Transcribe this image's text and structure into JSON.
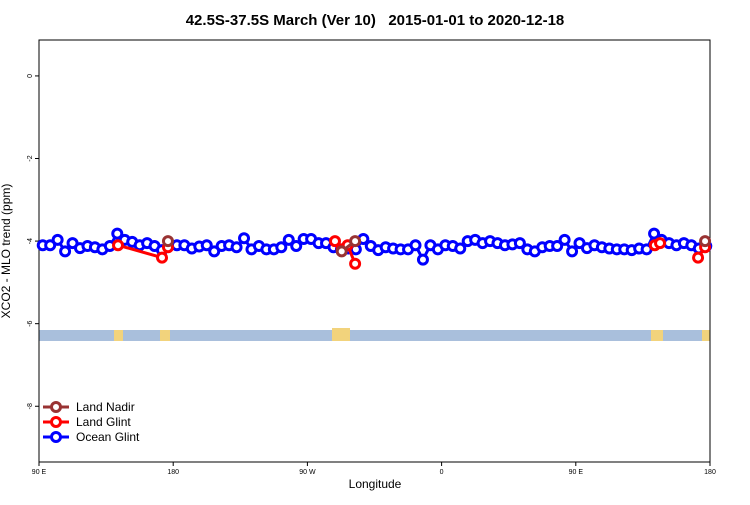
{
  "chart_data": {
    "type": "line",
    "title": "42.5S-37.5S March (Ver 10)   2015-01-01 to 2020-12-18",
    "x_label": "Longitude",
    "y_label": "XCO2 - MLO trend (ppm)",
    "xlim": [
      90,
      540
    ],
    "xticks": [
      {
        "value": 90,
        "label": "90 E"
      },
      {
        "value": 180,
        "label": "180"
      },
      {
        "value": 270,
        "label": "90 W"
      },
      {
        "value": 360,
        "label": "0"
      },
      {
        "value": 450,
        "label": "90 E"
      },
      {
        "value": 540,
        "label": "180"
      }
    ],
    "ylim": [
      -9.35,
      0.87
    ],
    "yticks": [
      0,
      -2,
      -4,
      -6,
      -8
    ],
    "legend": "bottomleft",
    "series": [
      {
        "name": "Land Nadir",
        "color": "#993333",
        "x": [
          176.5,
          null,
          293,
          302,
          null,
          536.7
        ],
        "values": [
          -4.0,
          null,
          -4.25,
          -4.0,
          null,
          -4.0
        ]
      },
      {
        "name": "Land Glint",
        "color": "#ff0000",
        "x": [
          143,
          172.5,
          176.5,
          null,
          288.5,
          293,
          297,
          302,
          null,
          503,
          506.5,
          null,
          532,
          536.7
        ],
        "values": [
          -4.1,
          -4.4,
          -4.15,
          null,
          -4.0,
          -4.2,
          -4.1,
          -4.55,
          null,
          -4.1,
          -4.05,
          null,
          -4.4,
          -4.15
        ]
      },
      {
        "name": "Ocean Glint",
        "color": "#0000ff",
        "x": [
          92.5,
          97.5,
          102.5,
          107.5,
          112.5,
          117.5,
          122.5,
          127.5,
          132.5,
          137.5,
          142.5,
          147.5,
          152.5,
          157.5,
          162.5,
          167.5,
          172.5,
          177.5,
          182.5,
          187.5,
          192.5,
          197.5,
          202.5,
          207.5,
          212.5,
          217.5,
          222.5,
          227.5,
          232.5,
          237.5,
          242.5,
          247.5,
          252.5,
          257.5,
          262.5,
          267.5,
          272.5,
          277.5,
          282.5,
          287.5,
          292.5,
          297.5,
          302.5,
          307.5,
          312.5,
          317.5,
          322.5,
          327.5,
          332.5,
          337.5,
          342.5,
          347.5,
          352.5,
          357.5,
          362.5,
          367.5,
          372.5,
          377.5,
          382.5,
          387.5,
          392.5,
          397.5,
          402.5,
          407.5,
          412.5,
          417.5,
          422.5,
          427.5,
          432.5,
          437.5,
          442.5,
          447.5,
          452.5,
          457.5,
          462.5,
          467.5,
          472.5,
          477.5,
          482.5,
          487.5,
          492.5,
          497.5,
          502.5,
          507.5,
          512.5,
          517.5,
          522.5,
          527.5,
          532.5,
          537.5
        ],
        "values": [
          -4.1,
          -4.1,
          -3.97,
          -4.25,
          -4.05,
          -4.17,
          -4.12,
          -4.15,
          -4.2,
          -4.12,
          -3.82,
          -3.97,
          -4.02,
          -4.1,
          -4.05,
          -4.12,
          -4.22,
          -4.1,
          -4.1,
          -4.1,
          -4.18,
          -4.13,
          -4.1,
          -4.25,
          -4.12,
          -4.1,
          -4.15,
          -3.93,
          -4.2,
          -4.12,
          -4.2,
          -4.2,
          -4.15,
          -3.97,
          -4.12,
          -3.95,
          -3.95,
          -4.05,
          -4.05,
          -4.15,
          -4.2,
          -4.18,
          -4.2,
          -3.95,
          -4.12,
          -4.22,
          -4.15,
          -4.18,
          -4.2,
          -4.2,
          -4.1,
          -4.45,
          -4.1,
          -4.2,
          -4.1,
          -4.12,
          -4.18,
          -4.0,
          -3.97,
          -4.05,
          -4.0,
          -4.05,
          -4.1,
          -4.08,
          -4.05,
          -4.2,
          -4.25,
          -4.15,
          -4.12,
          -4.12,
          -3.97,
          -4.25,
          -4.05,
          -4.17,
          -4.1,
          -4.15,
          -4.18,
          -4.2,
          -4.2,
          -4.22,
          -4.18,
          -4.2,
          -3.82,
          -3.97,
          -4.05,
          -4.1,
          -4.05,
          -4.1,
          -4.18,
          -4.12
        ]
      }
    ]
  }
}
